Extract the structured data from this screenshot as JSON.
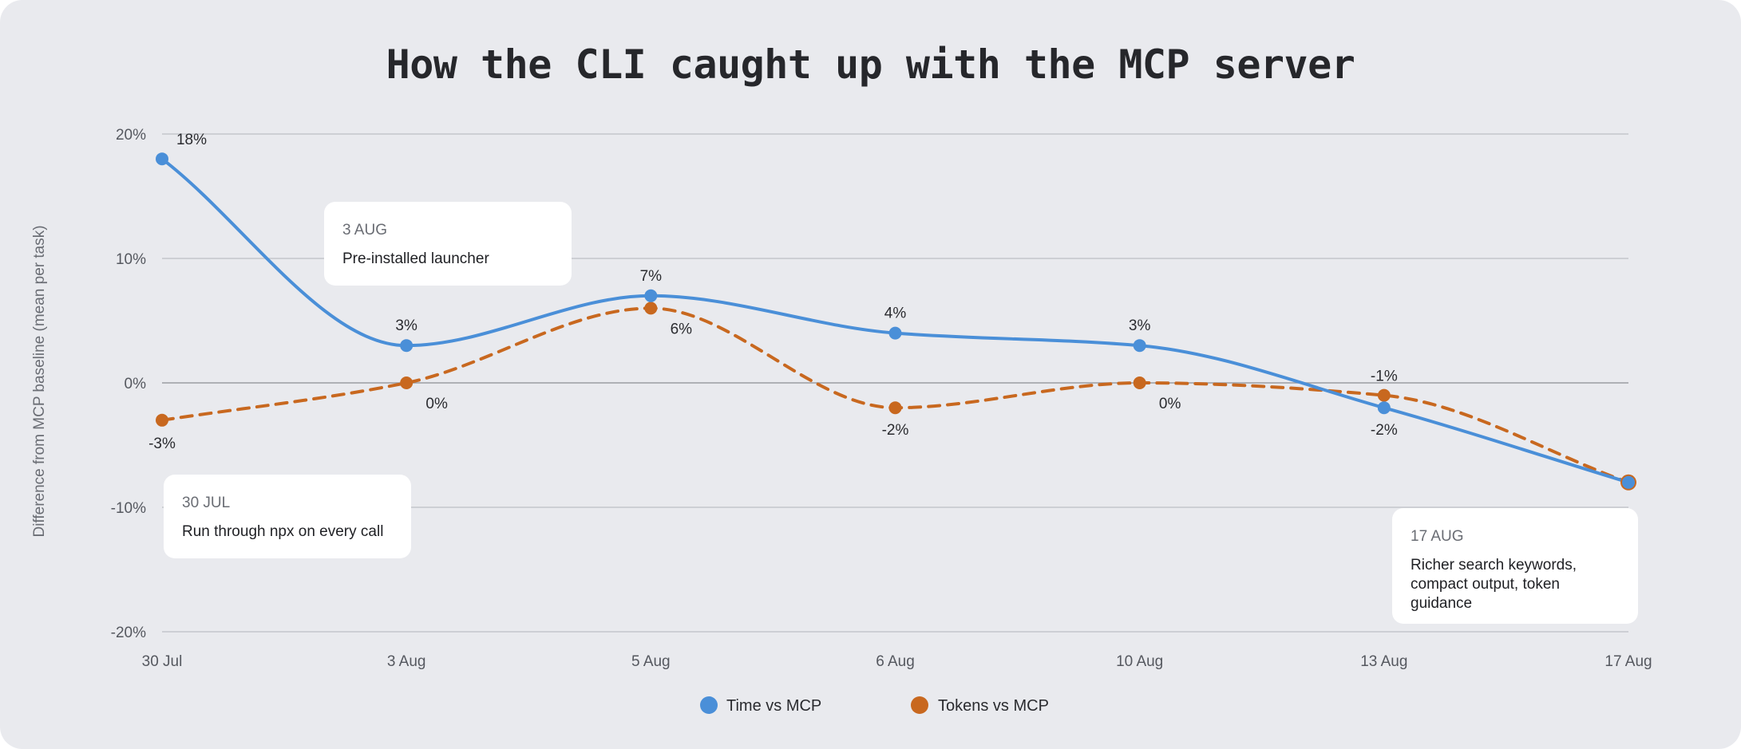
{
  "title": "How the CLI caught up with the MCP server",
  "colors": {
    "background": "#e9eaee",
    "time": "#4a8fd8",
    "tokens": "#c8681f",
    "grid": "#c4c6cc",
    "zero": "#9a9ca2"
  },
  "chart_data": {
    "type": "line",
    "x": [
      "30 Jul",
      "3 Aug",
      "5 Aug",
      "6 Aug",
      "10 Aug",
      "13 Aug",
      "17 Aug"
    ],
    "ylabel": "Difference from MCP baseline (mean per task)",
    "xlabel": "",
    "ylim": [
      -20,
      20
    ],
    "yticks": [
      20,
      10,
      0,
      -10,
      -20
    ],
    "ytick_labels": [
      "20%",
      "10%",
      "0%",
      "-10%",
      "-20%"
    ],
    "grid": true,
    "legend_position": "bottom-center",
    "series": [
      {
        "name": "Time vs MCP",
        "style": "solid",
        "values": [
          18,
          3,
          7,
          4,
          3,
          -2,
          -8
        ],
        "labels": [
          "18%",
          "3%",
          "7%",
          "4%",
          "3%",
          "-2%",
          ""
        ]
      },
      {
        "name": "Tokens vs MCP",
        "style": "dashed",
        "values": [
          -3,
          0,
          6,
          -2,
          0,
          -1,
          -8
        ],
        "labels": [
          "-3%",
          "0%",
          "6%",
          "-2%",
          "0%",
          "-1%",
          ""
        ]
      }
    ],
    "annotations": [
      {
        "date": "3 AUG",
        "lines": [
          "Pre-installed launcher"
        ]
      },
      {
        "date": "30 JUL",
        "lines": [
          "Run through npx on every call"
        ]
      },
      {
        "date": "17 AUG",
        "lines": [
          "Richer search keywords,",
          "compact output, token",
          "guidance"
        ]
      }
    ]
  }
}
